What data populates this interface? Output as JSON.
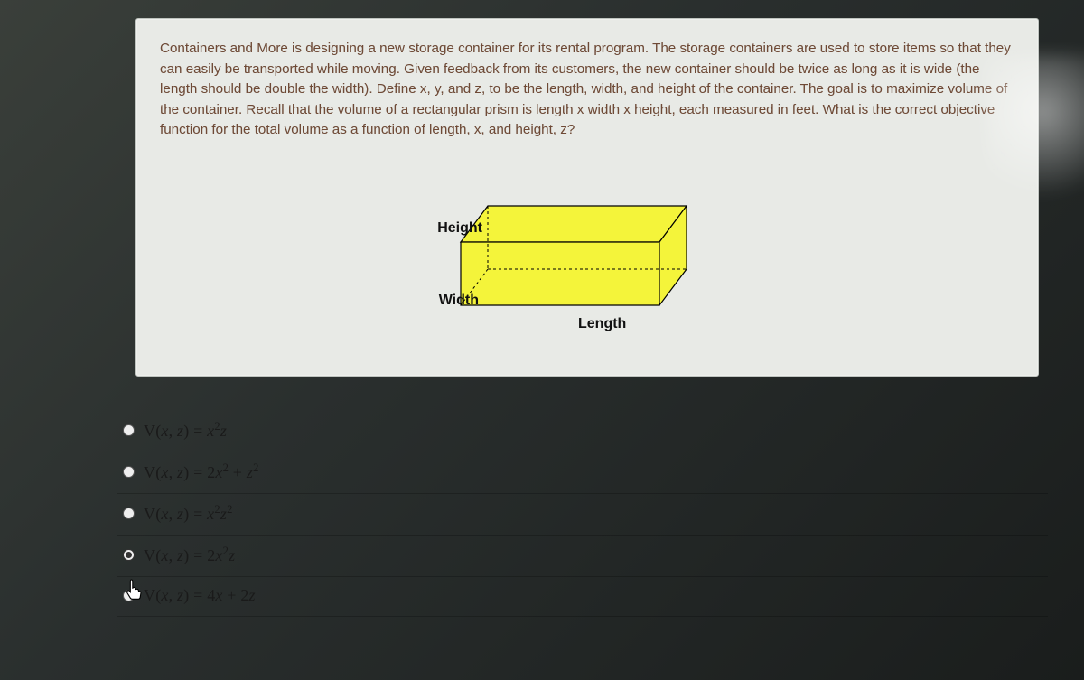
{
  "card": {
    "background_color": "#e8eae6",
    "text_color": "#6f4a36",
    "paragraph": "Containers and More is designing a new storage container for its rental program. The storage containers are used to store items so that they can easily be transported while moving. Given feedback from its customers, the new container should be twice as long as it is wide (the length should be double the width). Define x, y, and z, to be the length, width, and height of the container. The goal is to maximize volume of the container. Recall that the volume of a rectangular prism is length x width x height, each measured in feet. What is the correct objective function for the total volume as a function of length, x, and height, z?"
  },
  "diagram": {
    "labels": {
      "height": "Height",
      "width": "Width",
      "length": "Length"
    },
    "fill_color": "#f4f43a",
    "stroke_color": "#000000",
    "label_color": "#111111",
    "label_fontsize": 16
  },
  "options": {
    "border_color": "rgba(0,0,0,0.22)",
    "selected_index": 3,
    "items": [
      {
        "latex": "V(x, z) = x^2 z",
        "html": "<span class='rm'>V(</span>x<span class='rm'>,</span> z<span class='rm'>)</span> <span class='rm'>=</span> x<sup>2</sup>z"
      },
      {
        "latex": "V(x, z) = 2x^2 + z^2",
        "html": "<span class='rm'>V(</span>x<span class='rm'>,</span> z<span class='rm'>)</span> <span class='rm'>=</span> <span class='rm'>2</span>x<sup>2</sup> <span class='rm'>+</span> z<sup>2</sup>"
      },
      {
        "latex": "V(x, z) = x^2 z^2",
        "html": "<span class='rm'>V(</span>x<span class='rm'>,</span> z<span class='rm'>)</span> <span class='rm'>=</span> x<sup>2</sup>z<sup>2</sup>"
      },
      {
        "latex": "V(x, z) = 2x^2 z",
        "html": "<span class='rm'>V(</span>x<span class='rm'>,</span> z<span class='rm'>)</span> <span class='rm'>=</span> <span class='rm'>2</span>x<sup>2</sup>z"
      },
      {
        "latex": "V(x, z) = 4x + 2z",
        "html": "<span class='rm'>V(</span>x<span class='rm'>,</span> z<span class='rm'>)</span> <span class='rm'>=</span> <span class='rm'>4</span>x <span class='rm'>+</span> <span class='rm'>2</span>z"
      }
    ]
  }
}
